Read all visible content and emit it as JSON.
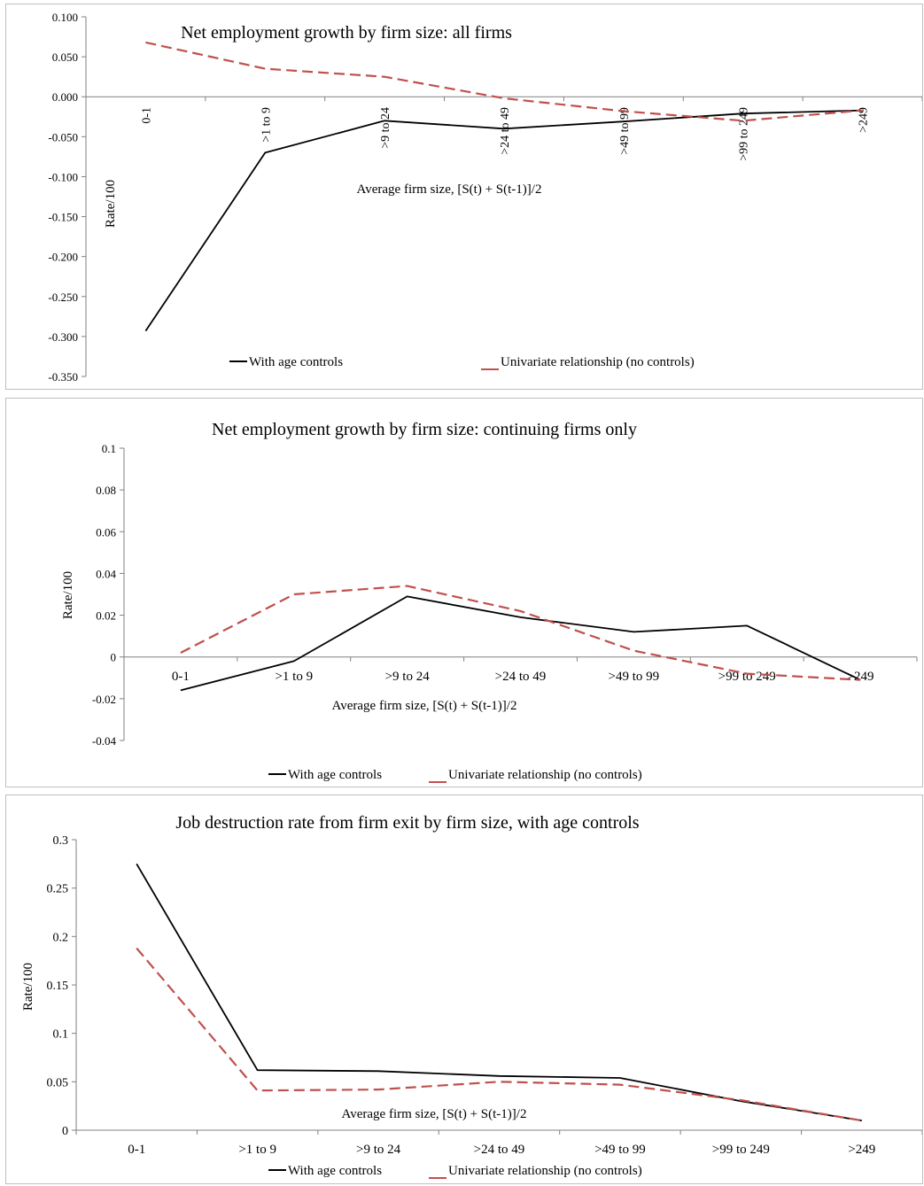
{
  "colors": {
    "with_age_controls": "#000000",
    "univariate": "#c0504d",
    "axis": "#808080",
    "border": "#bfbfbf"
  },
  "chart_data": [
    {
      "type": "line",
      "title": "Net employment growth by firm size: all firms",
      "xlabel": "Average firm size, [S(t) + S(t-1)]/2",
      "ylabel": "Rate/100",
      "categories": [
        "0-1",
        ">1 to 9",
        ">9 to 24",
        ">24 to 49",
        ">49 to 99",
        ">99 to 249",
        ">249"
      ],
      "yticks": [
        "0.100",
        "0.050",
        "0.000",
        "-0.050",
        "-0.100",
        "-0.150",
        "-0.200",
        "-0.250",
        "-0.300",
        "-0.350"
      ],
      "ylim": [
        -0.35,
        0.1
      ],
      "grid": false,
      "legend_position": "bottom",
      "series": [
        {
          "name": "With age controls",
          "style": "solid",
          "values": [
            -0.293,
            -0.07,
            -0.03,
            -0.04,
            -0.031,
            -0.021,
            -0.017
          ]
        },
        {
          "name": "Univariate relationship (no controls)",
          "style": "dashed",
          "values": [
            0.068,
            0.035,
            0.025,
            -0.002,
            -0.018,
            -0.03,
            -0.017
          ]
        }
      ]
    },
    {
      "type": "line",
      "title": "Net employment growth by firm size: continuing firms only",
      "xlabel": "Average firm size, [S(t) + S(t-1)]/2",
      "ylabel": "Rate/100",
      "categories": [
        "0-1",
        ">1 to 9",
        ">9 to 24",
        ">24 to 49",
        ">49 to 99",
        ">99 to 249",
        ">249"
      ],
      "yticks": [
        "0.1",
        "0.08",
        "0.06",
        "0.04",
        "0.02",
        "0",
        "-0.02",
        "-0.04"
      ],
      "ylim": [
        -0.04,
        0.1
      ],
      "grid": false,
      "legend_position": "bottom",
      "series": [
        {
          "name": "With age controls",
          "style": "solid",
          "values": [
            -0.016,
            -0.002,
            0.029,
            0.019,
            0.012,
            0.015,
            -0.011
          ]
        },
        {
          "name": "Univariate relationship (no controls)",
          "style": "dashed",
          "values": [
            0.002,
            0.03,
            0.034,
            0.022,
            0.003,
            -0.008,
            -0.011
          ]
        }
      ]
    },
    {
      "type": "line",
      "title": "Job destruction rate from firm exit by firm size, with age controls",
      "xlabel": "Average firm size, [S(t) + S(t-1)]/2",
      "ylabel": "Rate/100",
      "categories": [
        "0-1",
        ">1 to 9",
        ">9 to 24",
        ">24 to 49",
        ">49 to 99",
        ">99 to 249",
        ">249"
      ],
      "yticks": [
        "0.3",
        "0.25",
        "0.2",
        "0.15",
        "0.1",
        "0.05",
        "0"
      ],
      "ylim": [
        0,
        0.3
      ],
      "grid": false,
      "legend_position": "bottom",
      "series": [
        {
          "name": "With age controls",
          "style": "solid",
          "values": [
            0.275,
            0.062,
            0.061,
            0.056,
            0.054,
            0.03,
            0.01
          ]
        },
        {
          "name": "Univariate relationship (no controls)",
          "style": "dashed",
          "values": [
            0.188,
            0.041,
            0.042,
            0.05,
            0.047,
            0.031,
            0.01
          ]
        }
      ]
    }
  ]
}
